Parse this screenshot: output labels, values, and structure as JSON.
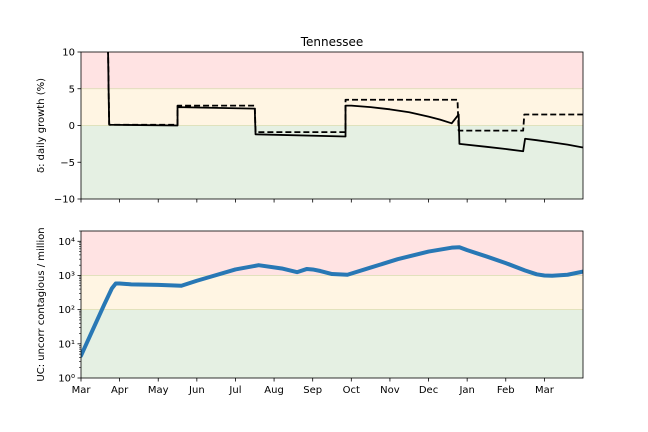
{
  "colors": {
    "red_zone": "#ffe3e3",
    "yellow_zone": "#fff5e3",
    "green_zone": "#e5f0e3",
    "zone_line": "#d8dcb0",
    "black": "#000000",
    "blue": "#2878b5"
  },
  "chart_data": [
    {
      "type": "line",
      "title": "Tennessee",
      "ylabel": "δ: daily growth (%)",
      "ylim": [
        -10,
        10
      ],
      "yticks": [
        -10,
        -5,
        0,
        5,
        10
      ],
      "ytick_labels": [
        "−10",
        "−5",
        "0",
        "5",
        "10"
      ],
      "xlim": [
        0,
        13
      ],
      "bands": [
        {
          "y0": 5,
          "y1": 10,
          "zone": "red"
        },
        {
          "y0": 0,
          "y1": 5,
          "zone": "yellow"
        },
        {
          "y0": -10,
          "y1": 0,
          "zone": "green"
        }
      ],
      "series": [
        {
          "style": "solid",
          "x": [
            0.7,
            0.72,
            0.73,
            2.5,
            2.5,
            4.5,
            4.52,
            6.85,
            6.85,
            7.0,
            7.5,
            8.0,
            8.5,
            9.0,
            9.3,
            9.6,
            9.78,
            9.8,
            10.5,
            11.0,
            11.45,
            11.5,
            11.8,
            12.2,
            12.6,
            13.0
          ],
          "y": [
            10.5,
            3.0,
            0.1,
            0.0,
            2.5,
            2.3,
            -1.2,
            -1.5,
            2.7,
            2.7,
            2.5,
            2.2,
            1.8,
            1.2,
            0.8,
            0.3,
            1.5,
            -2.5,
            -2.9,
            -3.2,
            -3.5,
            -1.8,
            -2.0,
            -2.3,
            -2.6,
            -3.0
          ]
        },
        {
          "style": "dashed",
          "x": [
            0.7,
            0.73,
            0.75,
            2.5,
            2.5,
            4.5,
            4.52,
            6.85,
            6.85,
            9.75,
            9.78,
            11.45,
            11.48,
            13.0
          ],
          "y": [
            10.5,
            0.2,
            0.1,
            0.1,
            2.7,
            2.7,
            -0.9,
            -0.9,
            3.5,
            3.5,
            -0.7,
            -0.7,
            1.5,
            1.5
          ]
        }
      ]
    },
    {
      "type": "line",
      "ylabel": "UC: uncorr contagious / million",
      "yscale": "log",
      "ylim": [
        1,
        20000
      ],
      "yticks": [
        1,
        10,
        100,
        1000,
        10000
      ],
      "ytick_labels": [
        "10⁰",
        "10¹",
        "10²",
        "10³",
        "10⁴"
      ],
      "xlim": [
        0,
        13
      ],
      "xticks": [
        0,
        1,
        2,
        3,
        4,
        5,
        6,
        7,
        8,
        9,
        10,
        11,
        12
      ],
      "xtick_labels": [
        "Mar",
        "Apr",
        "May",
        "Jun",
        "Jul",
        "Aug",
        "Sep",
        "Oct",
        "Nov",
        "Dec",
        "Jan",
        "Feb",
        "Mar"
      ],
      "bands": [
        {
          "y0": 1000,
          "y1": 20000,
          "zone": "red"
        },
        {
          "y0": 100,
          "y1": 1000,
          "zone": "yellow"
        },
        {
          "y0": 1,
          "y1": 100,
          "zone": "green"
        }
      ],
      "series": [
        {
          "style": "solid-thick",
          "x": [
            0.0,
            0.3,
            0.6,
            0.8,
            0.9,
            1.0,
            1.3,
            2.0,
            2.6,
            3.0,
            4.0,
            4.6,
            5.2,
            5.6,
            5.85,
            6.0,
            6.2,
            6.5,
            6.9,
            7.5,
            8.2,
            9.0,
            9.6,
            9.8,
            10.0,
            10.5,
            11.0,
            11.5,
            11.8,
            12.0,
            12.2,
            12.6,
            13.0
          ],
          "y": [
            4.5,
            25,
            140,
            420,
            580,
            580,
            550,
            530,
            500,
            700,
            1500,
            2000,
            1600,
            1250,
            1550,
            1500,
            1350,
            1100,
            1050,
            1700,
            3000,
            5000,
            6500,
            6700,
            5500,
            3600,
            2300,
            1400,
            1080,
            1000,
            980,
            1050,
            1300
          ]
        }
      ]
    }
  ]
}
